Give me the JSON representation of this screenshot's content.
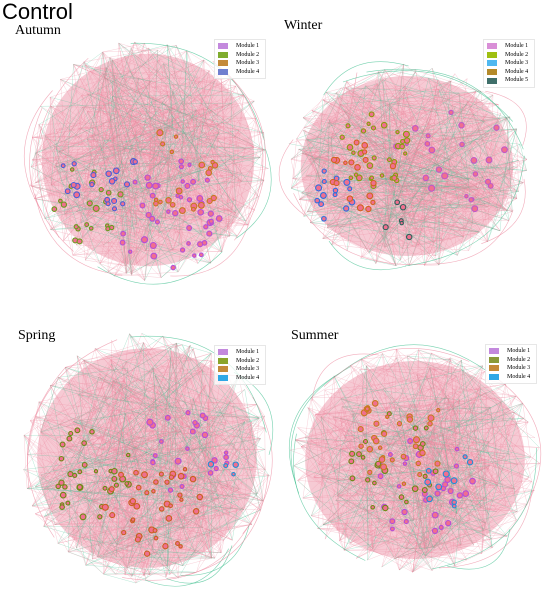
{
  "figure_title": "Control",
  "colors": {
    "edge_positive": "#ec8aa0",
    "edge_negative": "#3fbf8f",
    "node_fill": "#f06f8e",
    "background": "#ffffff"
  },
  "panels": [
    {
      "title": "Autumn",
      "modules": [
        {
          "label": "Module 1",
          "color": "#c389dd",
          "node_color": "#b44fd8"
        },
        {
          "label": "Module 2",
          "color": "#7fac2e",
          "node_color": "#6a9a1e"
        },
        {
          "label": "Module 3",
          "color": "#c48a3a",
          "node_color": "#c8781f"
        },
        {
          "label": "Module 4",
          "color": "#6f7fcf",
          "node_color": "#4b5fd8"
        }
      ]
    },
    {
      "title": "Winter",
      "modules": [
        {
          "label": "Module 1",
          "color": "#d98fd7",
          "node_color": "#c05ac8"
        },
        {
          "label": "Module 2",
          "color": "#9fbf10",
          "node_color": "#8a9a0c"
        },
        {
          "label": "Module 3",
          "color": "#4fb8f0",
          "node_color": "#2f6fe0"
        },
        {
          "label": "Module 4",
          "color": "#b48a2a",
          "node_color": "#d2641e"
        },
        {
          "label": "Module 5",
          "color": "#3f6f6a",
          "node_color": "#2f5f5a"
        }
      ]
    },
    {
      "title": "Spring",
      "modules": [
        {
          "label": "Module 1",
          "color": "#c389dd",
          "node_color": "#b44fd8"
        },
        {
          "label": "Module 2",
          "color": "#8aa42a",
          "node_color": "#6d8a14"
        },
        {
          "label": "Module 3",
          "color": "#c48a3a",
          "node_color": "#c8601f"
        },
        {
          "label": "Module 4",
          "color": "#2fa8e6",
          "node_color": "#1f8fd8"
        }
      ]
    },
    {
      "title": "Summer",
      "modules": [
        {
          "label": "Module 1",
          "color": "#c389dd",
          "node_color": "#b44fd8"
        },
        {
          "label": "Module 2",
          "color": "#8a9a3a",
          "node_color": "#6d8a14"
        },
        {
          "label": "Module 3",
          "color": "#c48a3a",
          "node_color": "#c8781f"
        },
        {
          "label": "Module 4",
          "color": "#2fa8e6",
          "node_color": "#1f8fd8"
        }
      ]
    }
  ]
}
